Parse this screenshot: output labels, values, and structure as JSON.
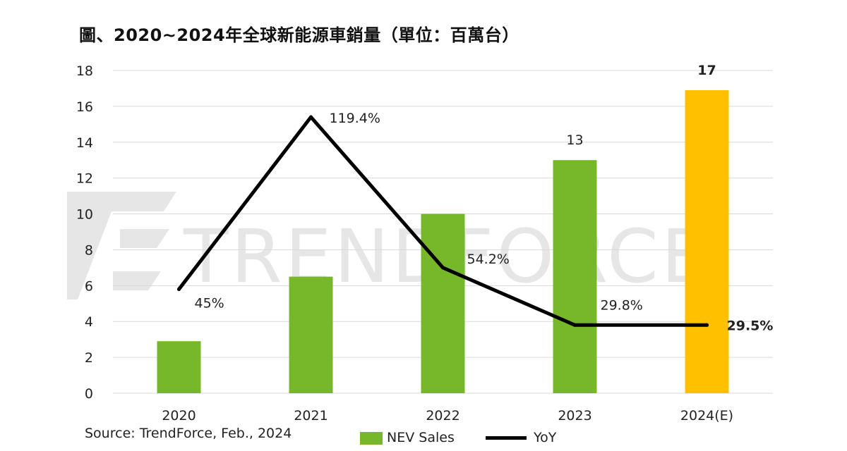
{
  "title": "圖、2020~2024年全球新能源車銷量（單位：百萬台）",
  "source": "Source: TrendForce, Feb., 2024",
  "watermark": "TRENDFORCE",
  "colors": {
    "bar": "#76b82a",
    "bar_estimate": "#ffc000",
    "line": "#000000",
    "grid": "#d9d9d9",
    "watermark": "#e6e6e6"
  },
  "legend": {
    "bar_label": "NEV Sales",
    "line_label": "YoY"
  },
  "chart_data": {
    "type": "bar",
    "categories": [
      "2020",
      "2021",
      "2022",
      "2023",
      "2024(E)"
    ],
    "ylim": [
      0,
      18
    ],
    "yticks": [
      "0",
      "2",
      "4",
      "6",
      "8",
      "10",
      "12",
      "14",
      "16",
      "18"
    ],
    "grid": true,
    "legend_position": "bottom",
    "series": [
      {
        "name": "NEV Sales",
        "type": "bar",
        "values": [
          2.9,
          6.5,
          10.0,
          13.0,
          16.9
        ],
        "labels": [
          "",
          "",
          "",
          "13",
          "17"
        ]
      },
      {
        "name": "YoY",
        "type": "line",
        "values": [
          5.8,
          15.4,
          7.0,
          3.8,
          3.8
        ],
        "labels": [
          "45%",
          "119.4%",
          "54.2%",
          "29.8%",
          "29.5%"
        ]
      }
    ]
  }
}
